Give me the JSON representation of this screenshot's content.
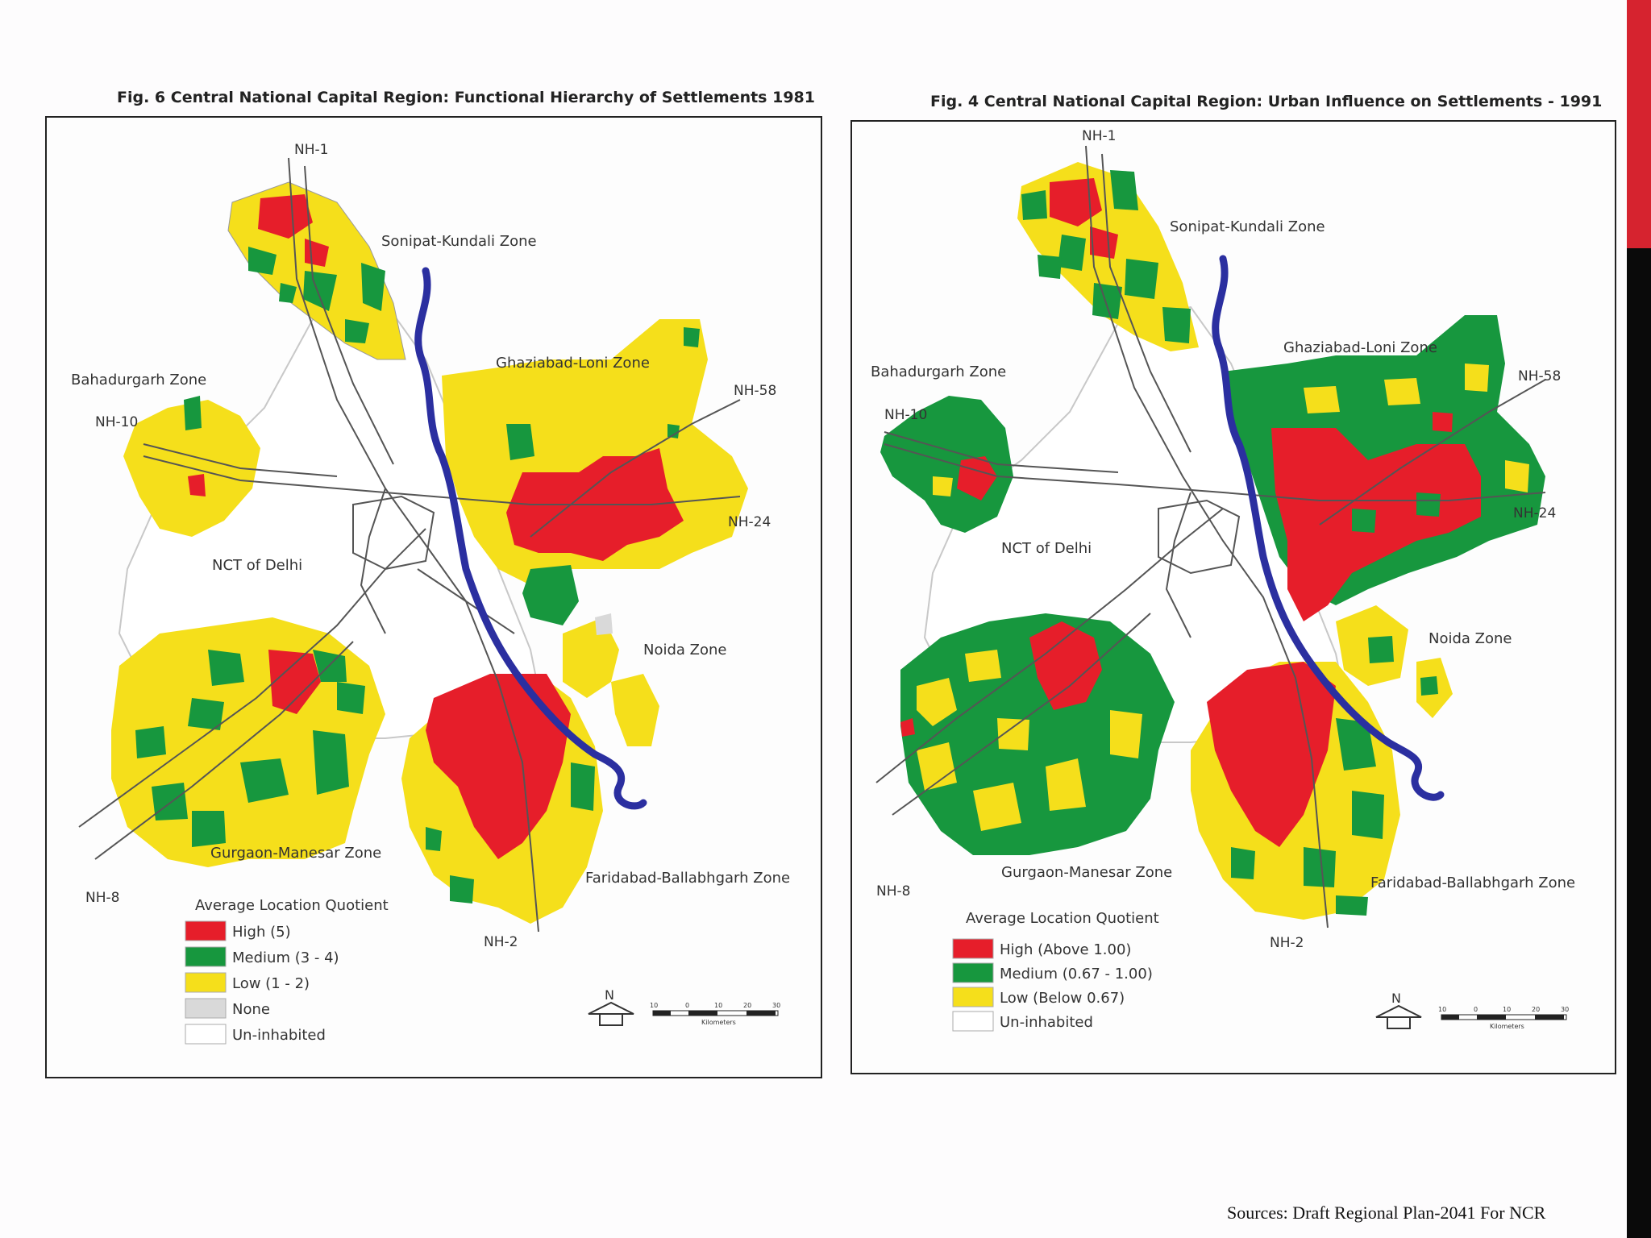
{
  "colors": {
    "high": "#e61e2a",
    "medium": "#17973e",
    "low": "#f5df1b",
    "none": "#d9d9d9",
    "uninhabited": "#ffffff",
    "river": "#2b2fa0",
    "road": "#555555",
    "accent_bar": "#d6232f"
  },
  "maps": [
    {
      "title": "Fig. 6  Central National Capital Region: Functional Hierarchy of Settlements 1981",
      "zones": {
        "sonipat": "Sonipat-Kundali Zone",
        "ghaziabad": "Ghaziabad-Loni Zone",
        "bahadurgarh": "Bahadurgarh Zone",
        "nct": "NCT of Delhi",
        "noida": "Noida Zone",
        "gurgaon": "Gurgaon-Manesar Zone",
        "faridabad": "Faridabad-Ballabhgarh Zone"
      },
      "highways": {
        "nh1": "NH-1",
        "nh10": "NH-10",
        "nh58": "NH-58",
        "nh24": "NH-24",
        "nh8": "NH-8",
        "nh2": "NH-2"
      },
      "legend": {
        "title": "Average Location Quotient",
        "items": [
          "High (5)",
          "Medium (3 - 4)",
          "Low (1 - 2)",
          "None",
          "Un-inhabited"
        ]
      },
      "scale": {
        "ticks": [
          "10",
          "0",
          "10",
          "20",
          "30"
        ],
        "unit": "Kilometers",
        "north": "N"
      }
    },
    {
      "title": "Fig. 4  Central National Capital Region: Urban Influence on Settlements - 1991",
      "zones": {
        "sonipat": "Sonipat-Kundali Zone",
        "ghaziabad": "Ghaziabad-Loni Zone",
        "bahadurgarh": "Bahadurgarh Zone",
        "nct": "NCT of Delhi",
        "noida": "Noida Zone",
        "gurgaon": "Gurgaon-Manesar Zone",
        "faridabad": "Faridabad-Ballabhgarh Zone"
      },
      "highways": {
        "nh1": "NH-1",
        "nh10": "NH-10",
        "nh58": "NH-58",
        "nh24": "NH-24",
        "nh8": "NH-8",
        "nh2": "NH-2"
      },
      "legend": {
        "title": "Average Location Quotient",
        "items": [
          "High (Above 1.00)",
          "Medium (0.67 - 1.00)",
          "Low (Below 0.67)",
          "Un-inhabited"
        ]
      },
      "scale": {
        "ticks": [
          "10",
          "0",
          "10",
          "20",
          "30"
        ],
        "unit": "Kilometers",
        "north": "N"
      }
    }
  ],
  "source": "Sources: Draft Regional Plan-2041 For NCR"
}
